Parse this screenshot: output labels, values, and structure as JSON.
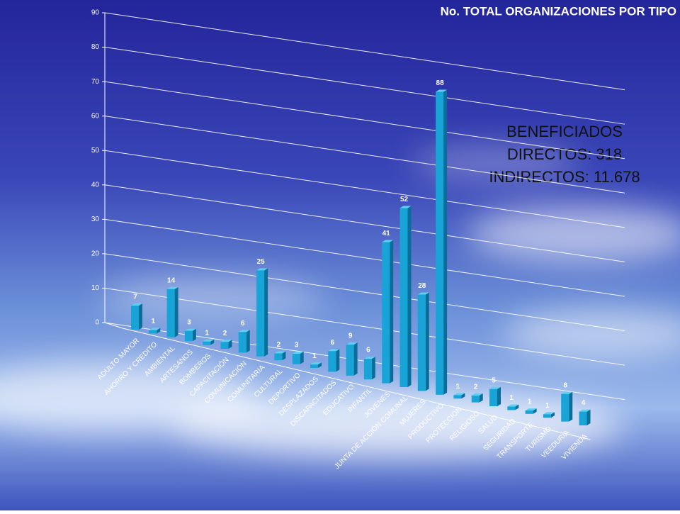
{
  "chart_data": {
    "type": "bar3d",
    "title": "No. TOTAL ORGANIZACIONES POR TIPO",
    "annotation": [
      "BENEFICIADOS",
      "DIRECTOS: 318",
      "INDIRECTOS: 11.678"
    ],
    "categories": [
      "ADULTO MAYOR",
      "AHORRO Y CREDITO",
      "AMBIENTAL",
      "ARTESANOS",
      "BOMBEROS",
      "CAPACITACIÓN",
      "COMUNICACIÓN",
      "COMUNITARIA",
      "CULTURAL",
      "DEPORTIVO",
      "DESPLAZADOS",
      "DISCAPACITADOS",
      "EDUCATIVO",
      "INFANTIL",
      "JOVENES",
      "JUNTA DE ACCIÓN COMUNAL",
      "MUJERES",
      "PRODUCTIVO",
      "PROTECCIÓN",
      "RELIGIOSO",
      "SALUD",
      "SEGURIDAD",
      "TRANSPORTE",
      "TURISMO",
      "VEEDURÍA",
      "VIVIENDA"
    ],
    "values": [
      7,
      1,
      14,
      3,
      1,
      2,
      6,
      25,
      2,
      3,
      1,
      6,
      9,
      6,
      41,
      52,
      28,
      88,
      1,
      2,
      5,
      1,
      1,
      1,
      8,
      4
    ],
    "color": "#18a4d6",
    "ylim": [
      0,
      90
    ],
    "yticks": [
      0,
      10,
      20,
      30,
      40,
      50,
      60,
      70,
      80,
      90
    ],
    "grid": true
  }
}
